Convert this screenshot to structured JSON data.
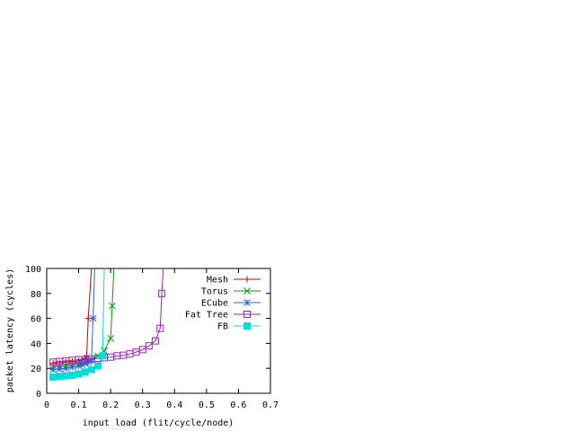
{
  "chart_data": {
    "type": "line",
    "title": "",
    "xlabel": "input load (flit/cycle/node)",
    "ylabel": "packet latency (cycles)",
    "xlim": [
      0,
      0.7
    ],
    "ylim": [
      0,
      100
    ],
    "xticks": [
      0,
      0.1,
      0.2,
      0.3,
      0.4,
      0.5,
      0.6,
      0.7
    ],
    "xtick_labels": [
      "0",
      "0.1",
      "0.2",
      "0.3",
      "0.4",
      "0.5",
      "0.6",
      "0.7"
    ],
    "yticks": [
      0,
      20,
      40,
      60,
      80,
      100
    ],
    "ytick_labels": [
      "0",
      "20",
      "40",
      "60",
      "80",
      "100"
    ],
    "grid": false,
    "legend_position": "top-right",
    "series": [
      {
        "name": "Mesh",
        "color": "#cc0000",
        "marker": "plus",
        "x": [
          0.02,
          0.04,
          0.06,
          0.08,
          0.1,
          0.11,
          0.12,
          0.125,
          0.13,
          0.14
        ],
        "y": [
          24,
          24.5,
          25,
          25.5,
          26,
          27,
          28,
          30,
          60,
          100
        ]
      },
      {
        "name": "Torus",
        "color": "#00a000",
        "marker": "cross",
        "x": [
          0.02,
          0.04,
          0.06,
          0.08,
          0.1,
          0.12,
          0.14,
          0.16,
          0.18,
          0.2,
          0.205,
          0.21
        ],
        "y": [
          21,
          21.5,
          22,
          23,
          23.5,
          25,
          27,
          30,
          34,
          44,
          70,
          100
        ]
      },
      {
        "name": "ECube",
        "color": "#3366cc",
        "marker": "asterisk",
        "x": [
          0.02,
          0.04,
          0.06,
          0.08,
          0.1,
          0.11,
          0.12,
          0.13,
          0.135,
          0.14,
          0.145,
          0.15
        ],
        "y": [
          19,
          19.5,
          20,
          21,
          22,
          23,
          24,
          25,
          26,
          27,
          60,
          100
        ]
      },
      {
        "name": "Fat Tree",
        "color": "#a020c0",
        "marker": "square",
        "x": [
          0.02,
          0.04,
          0.06,
          0.08,
          0.1,
          0.12,
          0.14,
          0.16,
          0.18,
          0.2,
          0.22,
          0.24,
          0.26,
          0.28,
          0.3,
          0.32,
          0.34,
          0.355,
          0.36,
          0.365
        ],
        "y": [
          25,
          25.5,
          26,
          26.5,
          27,
          27,
          27.5,
          28,
          28.5,
          29,
          30,
          30.5,
          31.5,
          33,
          35,
          38,
          42,
          52,
          80,
          100
        ]
      },
      {
        "name": "FB",
        "color": "#00dddd",
        "marker": "filled-square",
        "x": [
          0.02,
          0.04,
          0.06,
          0.08,
          0.1,
          0.12,
          0.14,
          0.16,
          0.175,
          0.18
        ],
        "y": [
          13,
          13.5,
          14,
          14.5,
          15.5,
          17,
          19,
          22,
          30,
          100
        ]
      }
    ]
  }
}
